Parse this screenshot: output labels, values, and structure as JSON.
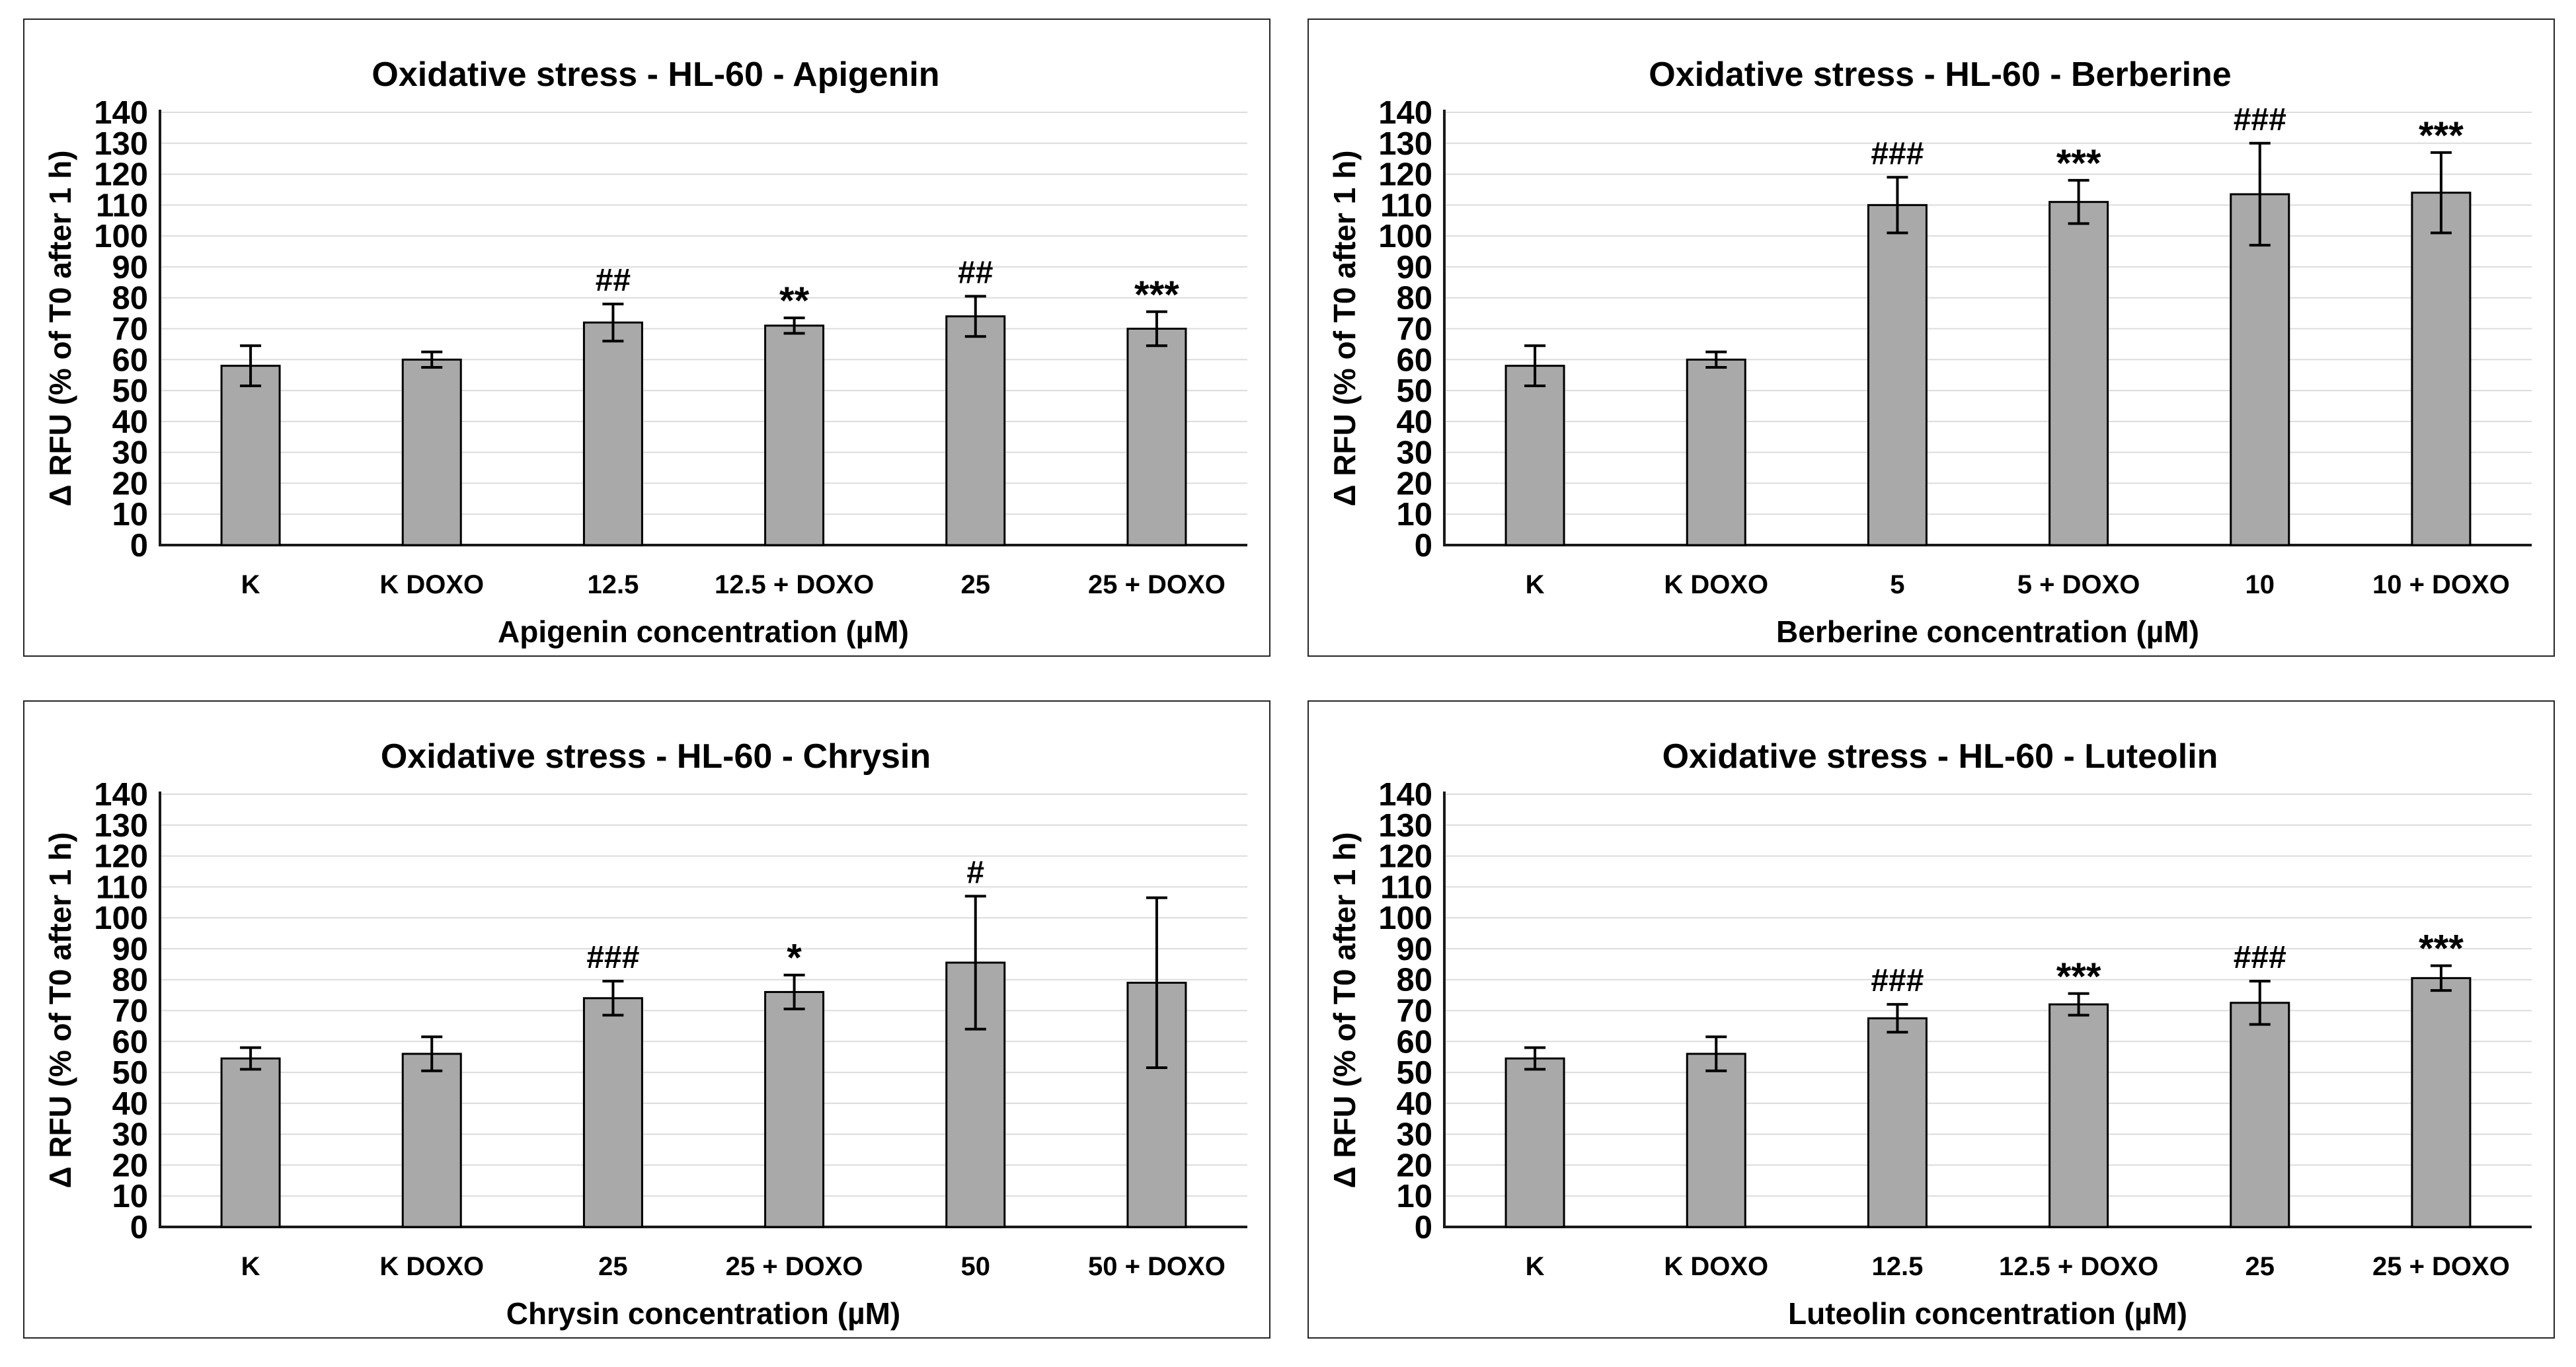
{
  "page": {
    "background": "#ffffff",
    "description_text": ""
  },
  "styles": {
    "panel_border": "#262626",
    "bar_fill": "#a9a9a9",
    "bar_stroke": "#000000",
    "gridline": "#dcdcdc",
    "axis_line": "#1a1a1a",
    "error_bar": "#000000",
    "text_color": "#000000"
  },
  "chart_data": [
    {
      "type": "bar",
      "id": "apigenin",
      "title": "Oxidative stress - HL-60 - Apigenin",
      "xlabel": "Apigenin concentration (µM)",
      "ylabel": "Δ RFU (% of T0 after 1 h)",
      "ylim": [
        0,
        140
      ],
      "ytick_step": 10,
      "grid": "horizontal",
      "legend": "none",
      "categories": [
        "K",
        "K DOXO",
        "12.5",
        "12.5 + DOXO",
        "25",
        "25 + DOXO"
      ],
      "values": [
        58,
        60,
        72,
        71,
        74,
        70
      ],
      "errors": [
        6.5,
        2.5,
        6,
        2.5,
        6.5,
        5.5
      ],
      "annotations": [
        "",
        "",
        "##",
        "**",
        "##",
        "***"
      ]
    },
    {
      "type": "bar",
      "id": "berberine",
      "title": "Oxidative stress - HL-60 - Berberine",
      "xlabel": "Berberine concentration (µM)",
      "ylabel": "Δ RFU (% of T0 after 1 h)",
      "ylim": [
        0,
        140
      ],
      "ytick_step": 10,
      "grid": "horizontal",
      "legend": "none",
      "categories": [
        "K",
        "K DOXO",
        "5",
        "5 + DOXO",
        "10",
        "10 + DOXO"
      ],
      "values": [
        58,
        60,
        110,
        111,
        113.5,
        114
      ],
      "errors": [
        6.5,
        2.5,
        9,
        7,
        16.5,
        13
      ],
      "annotations": [
        "",
        "",
        "###",
        "***",
        "###",
        "***"
      ]
    },
    {
      "type": "bar",
      "id": "chrysin",
      "title": "Oxidative stress - HL-60 - Chrysin",
      "xlabel": "Chrysin concentration (µM)",
      "ylabel": "Δ RFU (% of T0 after 1 h)",
      "ylim": [
        0,
        140
      ],
      "ytick_step": 10,
      "grid": "horizontal",
      "legend": "none",
      "categories": [
        "K",
        "K DOXO",
        "25",
        "25 + DOXO",
        "50",
        "50 + DOXO"
      ],
      "values": [
        54.5,
        56,
        74,
        76,
        85.5,
        79
      ],
      "errors": [
        3.5,
        5.5,
        5.5,
        5.5,
        21.5,
        27.5
      ],
      "annotations": [
        "",
        "",
        "###",
        "*",
        "#",
        ""
      ]
    },
    {
      "type": "bar",
      "id": "luteolin",
      "title": "Oxidative stress - HL-60 - Luteolin",
      "xlabel": "Luteolin concentration (µM)",
      "ylabel": "Δ RFU (% of T0 after 1 h)",
      "ylim": [
        0,
        140
      ],
      "ytick_step": 10,
      "grid": "horizontal",
      "legend": "none",
      "categories": [
        "K",
        "K DOXO",
        "12.5",
        "12.5 + DOXO",
        "25",
        "25 + DOXO"
      ],
      "values": [
        54.5,
        56,
        67.5,
        72,
        72.5,
        80.5
      ],
      "errors": [
        3.5,
        5.5,
        4.5,
        3.5,
        7,
        4
      ],
      "annotations": [
        "",
        "",
        "###",
        "***",
        "###",
        "***"
      ]
    }
  ]
}
